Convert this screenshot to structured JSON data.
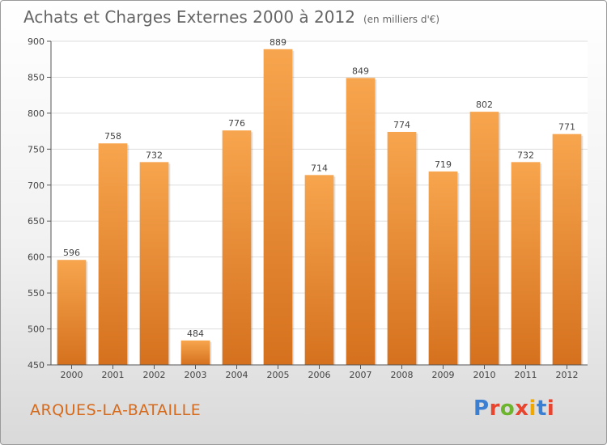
{
  "title": "Achats et Charges Externes 2000 à 2012",
  "subtitle": "(en milliers d'€)",
  "location": "ARQUES-LA-BATAILLE",
  "logo": {
    "text": "Proxiti",
    "letter_colors": [
      "#3a7fd1",
      "#e8442e",
      "#6cb52d",
      "#e8442e",
      "#f0a800",
      "#3a7fd1",
      "#e8442e"
    ]
  },
  "colors": {
    "bar_top": "#f7a54e",
    "bar_bottom": "#d5711e",
    "grid": "#dddddd",
    "accent": "#d66a1c"
  },
  "chart_data": {
    "type": "bar",
    "categories": [
      "2000",
      "2001",
      "2002",
      "2003",
      "2004",
      "2005",
      "2006",
      "2007",
      "2008",
      "2009",
      "2010",
      "2011",
      "2012"
    ],
    "values": [
      596,
      758,
      732,
      484,
      776,
      889,
      714,
      849,
      774,
      719,
      802,
      732,
      771
    ],
    "title": "Achats et Charges Externes 2000 à 2012",
    "subtitle": "(en milliers d'€)",
    "ylim": [
      450,
      900
    ],
    "yticks": [
      450,
      500,
      550,
      600,
      650,
      700,
      750,
      800,
      850,
      900
    ],
    "grid": true,
    "legend": "none"
  }
}
